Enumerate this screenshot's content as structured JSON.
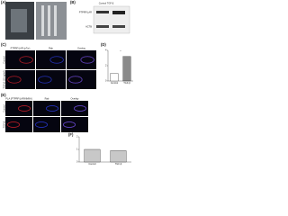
{
  "figure": {
    "panels": {
      "a": "(A)",
      "b": "(B)",
      "c": "(C)",
      "d": "(D)",
      "e": "(E)",
      "f": "(F)"
    },
    "blot": {
      "labels": [
        "PTPRF/LAR",
        "ACTB"
      ],
      "lanes": "Control  TGF-β"
    },
    "c_headers": [
      "PTPRF/LAR (pTyr)",
      "Rab",
      "Overlay"
    ],
    "c_rows": [
      "Control",
      "TGF-β (10 ng/ml)"
    ],
    "e_headers": [
      "PLA (PTPRF/LAR/NMIIA)",
      "Rab",
      "Overlay"
    ],
    "e_rows": [
      "Control",
      "TGF-β"
    ]
  },
  "chart_data": [
    {
      "type": "bar",
      "categories": [
        "Control",
        "TGF-β"
      ],
      "values": [
        1,
        3.2
      ],
      "colors": [
        "#ffffff",
        "#8a8a8a"
      ],
      "ylim": [
        0,
        4
      ],
      "yticks": [
        0,
        2,
        4
      ],
      "annotation": "*"
    },
    {
      "type": "bar",
      "categories": [
        "Control",
        "TGF-β"
      ],
      "values": [
        1,
        0.9
      ],
      "colors": [
        "#c8c8c8",
        "#c8c8c8"
      ],
      "ylim": [
        0,
        2
      ],
      "yticks": [
        0,
        1,
        2
      ]
    }
  ]
}
